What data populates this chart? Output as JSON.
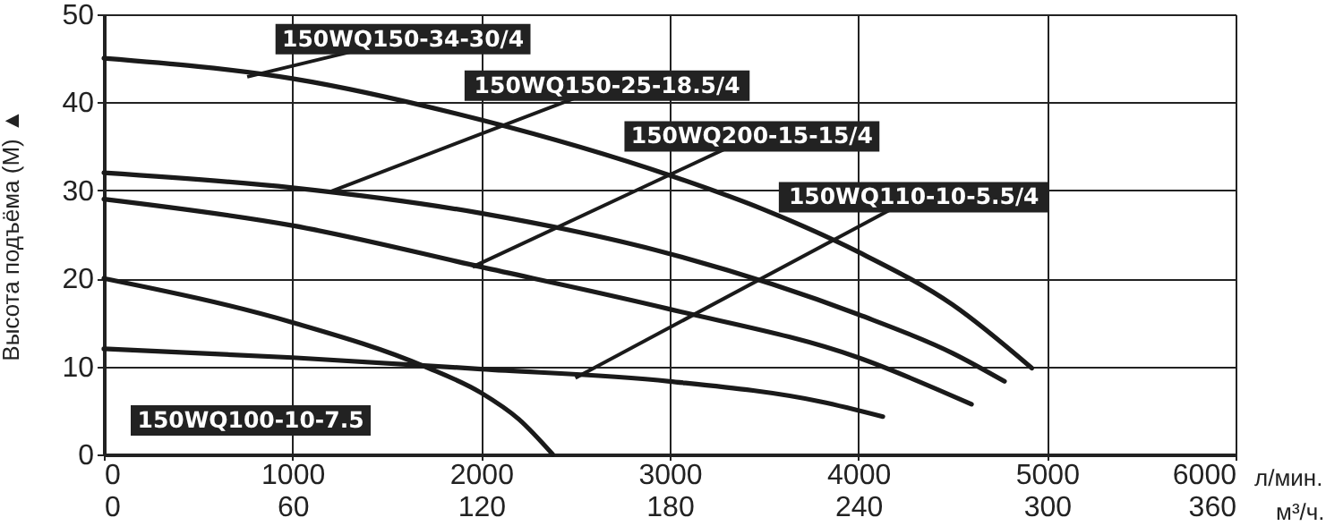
{
  "chart_data": {
    "type": "line",
    "xlabel": "л/мин.",
    "ylabel": "Высота подъёма (М) ▲",
    "x2label": "м³/ч.",
    "xlim": [
      0,
      6000
    ],
    "xticks": [
      0,
      1000,
      2000,
      3000,
      4000,
      5000,
      6000
    ],
    "x2lim": [
      0,
      360
    ],
    "x2ticks": [
      0,
      60,
      120,
      180,
      240,
      300,
      360
    ],
    "ylim": [
      0,
      50
    ],
    "yticks": [
      0,
      10,
      20,
      30,
      40,
      50
    ],
    "grid": true,
    "marker": "none",
    "line_style": "solid",
    "series": [
      {
        "color": "#1a1a1a",
        "x": [
          0,
          1000,
          2000,
          3000,
          3500,
          4000,
          4500,
          4920
        ],
        "values": [
          45,
          42.7,
          38,
          31.7,
          27.8,
          23,
          17,
          9.8
        ]
      },
      {
        "color": "#1a1a1a",
        "x": [
          0,
          1000,
          2000,
          3000,
          4000,
          4500,
          4775
        ],
        "values": [
          32,
          30.3,
          27.4,
          22.8,
          15.9,
          11.5,
          8.3
        ]
      },
      {
        "color": "#1a1a1a",
        "x": [
          0,
          1000,
          2000,
          3000,
          4000,
          4600
        ],
        "values": [
          29,
          26,
          21.3,
          16.5,
          11,
          5.7
        ]
      },
      {
        "color": "#1a1a1a",
        "x": [
          0,
          1000,
          2000,
          3000,
          3800,
          4130
        ],
        "values": [
          12,
          11,
          9.7,
          8.3,
          6,
          4.3
        ]
      },
      {
        "color": "#1a1a1a",
        "x": [
          0,
          1000,
          1700,
          2000,
          2200,
          2380
        ],
        "values": [
          20,
          15,
          10,
          7,
          4,
          0
        ]
      }
    ],
    "annotations": [
      {
        "text": "150WQ150-34-30/4",
        "x": 760,
        "y": 42.9
      },
      {
        "text": "150WQ150-25-18.5/4",
        "x": 1206,
        "y": 29.9
      },
      {
        "text": "150WQ200-15-15/4",
        "x": 1955,
        "y": 21.3
      },
      {
        "text": "150WQ110-10-5.5/4",
        "x": 2500,
        "y": 8.7
      },
      "150WQ100-10-7.5"
    ]
  }
}
